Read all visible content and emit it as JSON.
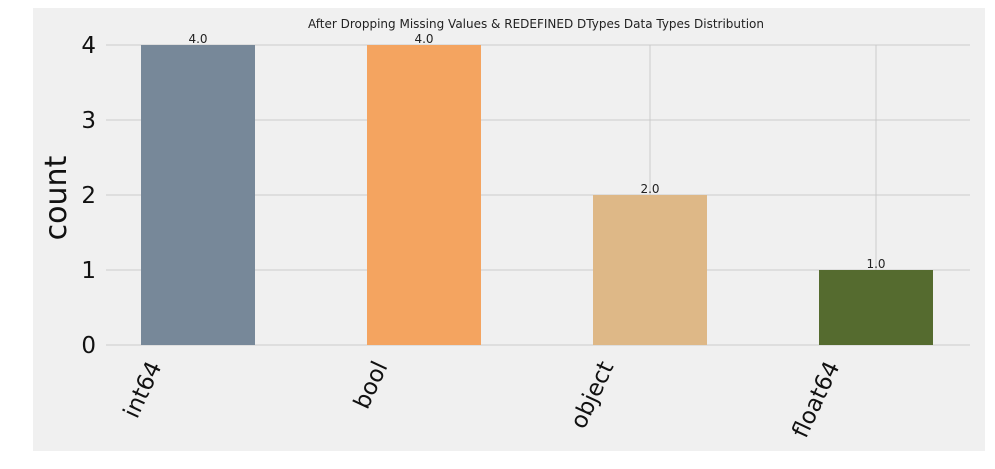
{
  "chart_data": {
    "type": "bar",
    "title": "After Dropping Missing Values & REDEFINED DTypes Data Types Distribution",
    "xlabel": "",
    "ylabel": "count",
    "categories": [
      "int64",
      "bool",
      "object",
      "float64"
    ],
    "values": [
      4,
      4,
      2,
      1
    ],
    "value_labels": [
      "4.0",
      "4.0",
      "2.0",
      "1.0"
    ],
    "colors": [
      "#778899",
      "#f4a460",
      "#deb887",
      "#556b2f"
    ],
    "ylim": [
      0,
      4
    ],
    "yticks": [
      "0",
      "1",
      "2",
      "3",
      "4"
    ],
    "grid": true,
    "legend": "none",
    "style": {
      "plot_background": "#f0f0f0",
      "grid_color": "#cbcbcb"
    }
  }
}
